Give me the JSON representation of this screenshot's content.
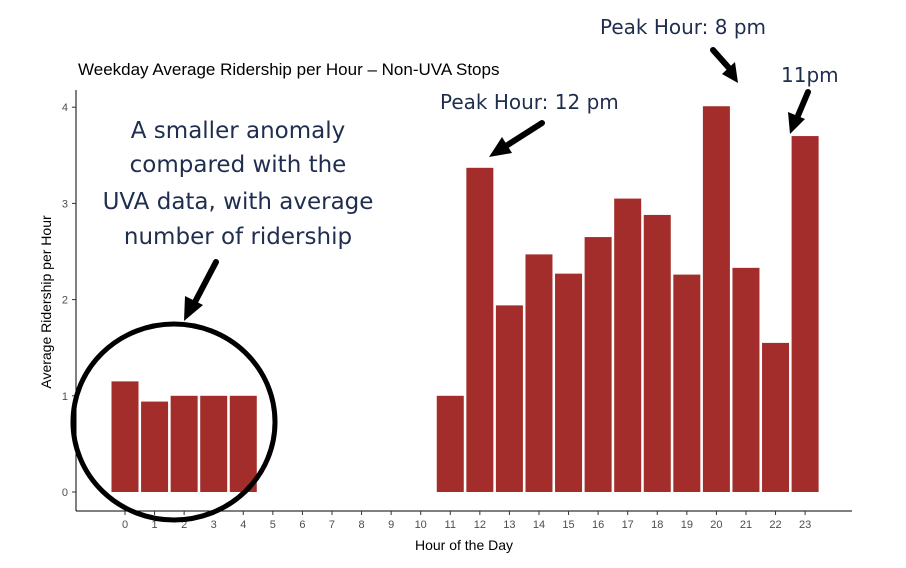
{
  "chart_data": {
    "type": "bar",
    "title": "Weekday Average Ridership per Hour – Non-UVA Stops",
    "xlabel": "Hour of the Day",
    "ylabel": "Average Ridership per Hour",
    "x": [
      0,
      1,
      2,
      3,
      4,
      5,
      6,
      7,
      8,
      9,
      10,
      11,
      12,
      13,
      14,
      15,
      16,
      17,
      18,
      19,
      20,
      21,
      22,
      23
    ],
    "x_tick_labels": [
      "0",
      "1",
      "2",
      "3",
      "4",
      "5",
      "6",
      "7",
      "8",
      "9",
      "10",
      "11",
      "12",
      "13",
      "14",
      "15",
      "16",
      "17",
      "18",
      "19",
      "20",
      "21",
      "22",
      "23"
    ],
    "values": [
      1.15,
      0.94,
      1.0,
      1.0,
      1.0,
      null,
      null,
      null,
      null,
      null,
      null,
      1.0,
      3.37,
      1.94,
      2.47,
      2.27,
      2.65,
      3.05,
      2.88,
      2.26,
      4.01,
      2.33,
      1.55,
      3.7
    ],
    "ylim": [
      0,
      4.1
    ],
    "y_ticks": [
      0,
      1,
      2,
      3,
      4
    ],
    "y_tick_labels": [
      "0",
      "1",
      "2",
      "3",
      "4"
    ],
    "bar_color": "#a32d2a",
    "grid": false
  },
  "annotations": {
    "anomaly_lines": [
      "A smaller anomaly",
      "compared with the",
      "UVA data, with average",
      "number of ridership"
    ],
    "peak_12": "Peak Hour: 12 pm",
    "peak_8": "Peak Hour: 8 pm",
    "peak_11": "11pm",
    "text_color": "#1f2d4e",
    "arrow_color": "#000000"
  }
}
